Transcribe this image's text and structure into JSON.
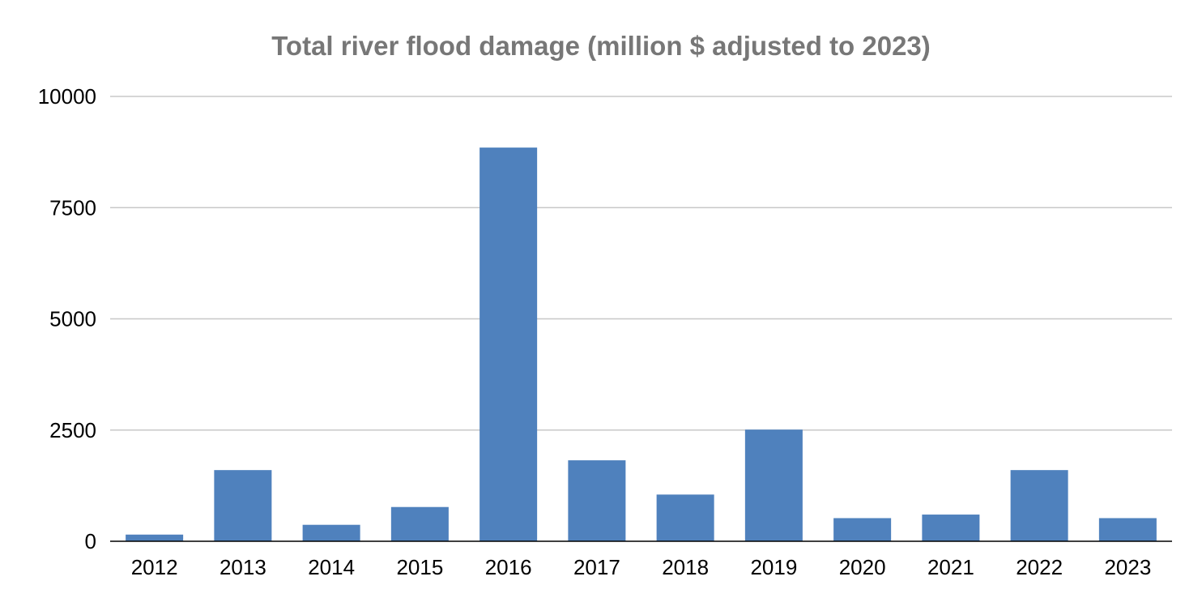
{
  "chart_data": {
    "type": "bar",
    "title": "Total river flood damage (million $ adjusted to 2023)",
    "xlabel": "",
    "ylabel": "",
    "categories": [
      "2012",
      "2013",
      "2014",
      "2015",
      "2016",
      "2017",
      "2018",
      "2019",
      "2020",
      "2021",
      "2022",
      "2023"
    ],
    "values": [
      150,
      1600,
      370,
      770,
      8850,
      1820,
      1050,
      2510,
      520,
      600,
      1600,
      520
    ],
    "ylim": [
      0,
      10000
    ],
    "yticks": [
      "0",
      "2500",
      "5000",
      "7500",
      "10000"
    ],
    "ytick_values": [
      0,
      2500,
      5000,
      7500,
      10000
    ],
    "grid": true,
    "legend": "none",
    "bar_color": "#4f81bd",
    "grid_color": "#c8c8c8",
    "title_color": "#777777"
  }
}
